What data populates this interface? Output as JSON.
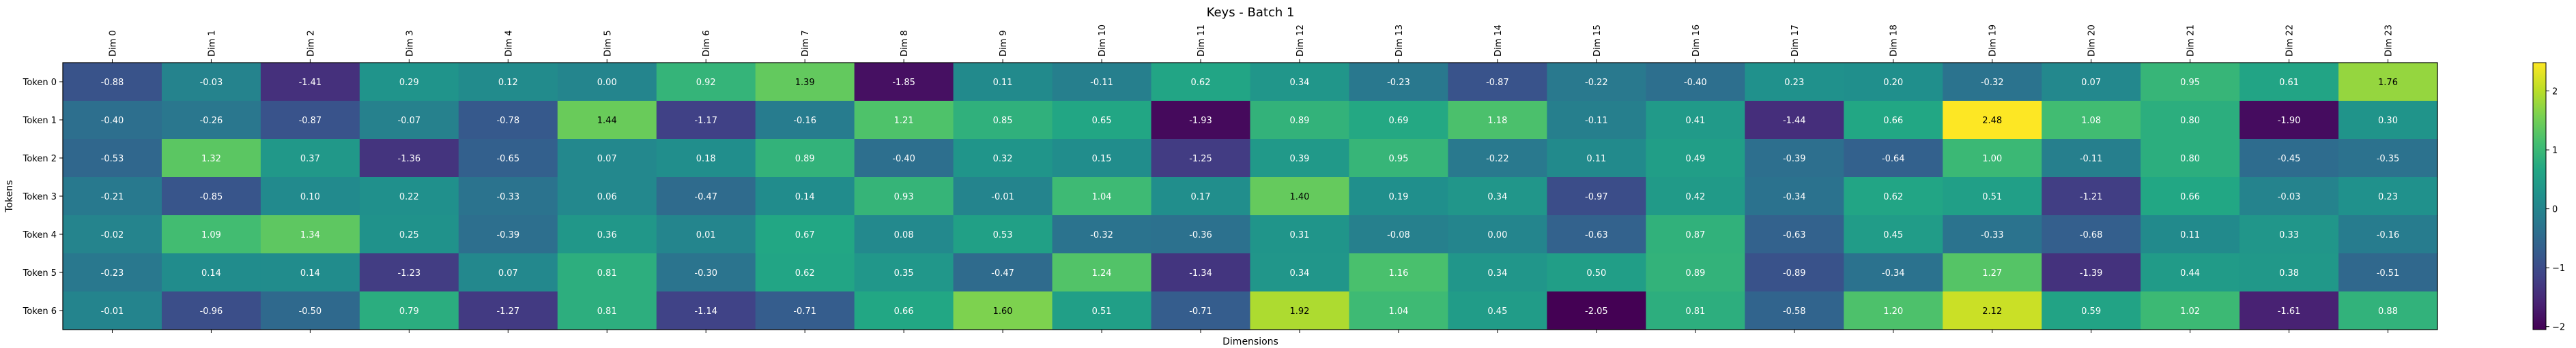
{
  "chart_data": {
    "type": "heatmap",
    "title": "Keys - Batch 1",
    "xlabel": "Dimensions",
    "ylabel": "Tokens",
    "x_categories": [
      "Dim 0",
      "Dim 1",
      "Dim 2",
      "Dim 3",
      "Dim 4",
      "Dim 5",
      "Dim 6",
      "Dim 7",
      "Dim 8",
      "Dim 9",
      "Dim 10",
      "Dim 11",
      "Dim 12",
      "Dim 13",
      "Dim 14",
      "Dim 15",
      "Dim 16",
      "Dim 17",
      "Dim 18",
      "Dim 19",
      "Dim 20",
      "Dim 21",
      "Dim 22",
      "Dim 23"
    ],
    "y_categories": [
      "Token 0",
      "Token 1",
      "Token 2",
      "Token 3",
      "Token 4",
      "Token 5",
      "Token 6"
    ],
    "values": [
      [
        -0.88,
        -0.03,
        -1.41,
        0.29,
        0.12,
        -0.0,
        0.92,
        1.39,
        -1.85,
        0.11,
        -0.11,
        0.62,
        0.34,
        -0.23,
        -0.87,
        -0.22,
        -0.4,
        0.23,
        0.2,
        -0.32,
        0.07,
        0.95,
        0.61,
        1.76
      ],
      [
        -0.4,
        -0.26,
        -0.87,
        -0.07,
        -0.78,
        1.44,
        -1.17,
        -0.16,
        1.21,
        0.85,
        0.65,
        -1.93,
        0.89,
        0.69,
        1.18,
        -0.11,
        0.41,
        -1.44,
        0.66,
        2.48,
        1.08,
        0.8,
        -1.9,
        0.3
      ],
      [
        -0.53,
        1.32,
        0.37,
        -1.36,
        -0.65,
        0.07,
        0.18,
        0.89,
        -0.4,
        0.32,
        0.15,
        -1.25,
        0.39,
        0.95,
        -0.22,
        0.11,
        0.49,
        -0.39,
        -0.64,
        1.0,
        -0.11,
        0.8,
        -0.45,
        -0.35
      ],
      [
        -0.21,
        -0.85,
        0.1,
        0.22,
        -0.33,
        0.06,
        -0.47,
        0.14,
        0.93,
        -0.01,
        1.04,
        0.17,
        1.4,
        0.19,
        0.34,
        -0.97,
        0.42,
        -0.34,
        0.62,
        0.51,
        -1.21,
        0.66,
        -0.03,
        0.23
      ],
      [
        -0.02,
        1.09,
        1.34,
        0.25,
        -0.39,
        0.36,
        0.01,
        0.67,
        0.08,
        0.53,
        -0.32,
        -0.36,
        0.31,
        -0.08,
        0.0,
        -0.63,
        0.87,
        -0.63,
        0.45,
        -0.33,
        -0.68,
        0.11,
        0.33,
        -0.16
      ],
      [
        -0.23,
        0.14,
        0.14,
        -1.23,
        0.07,
        0.81,
        -0.3,
        0.62,
        0.35,
        -0.47,
        1.24,
        -1.34,
        0.34,
        1.16,
        0.34,
        0.5,
        0.89,
        -0.89,
        -0.34,
        1.27,
        -1.39,
        0.44,
        0.38,
        -0.51
      ],
      [
        -0.01,
        -0.96,
        -0.5,
        0.79,
        -1.27,
        0.81,
        -1.14,
        -0.71,
        0.66,
        1.6,
        0.51,
        -0.71,
        1.92,
        1.04,
        0.45,
        -2.05,
        0.81,
        -0.58,
        1.2,
        2.12,
        0.59,
        1.02,
        -1.61,
        0.88
      ]
    ],
    "color_scale": "viridis",
    "vmin": -2.05,
    "vmax": 2.48,
    "colorbar_ticks": [
      2,
      1,
      0,
      -1,
      -2
    ],
    "colorbar_tick_labels": [
      "2",
      "1",
      "0",
      "−1",
      "−2"
    ],
    "grid": false
  }
}
